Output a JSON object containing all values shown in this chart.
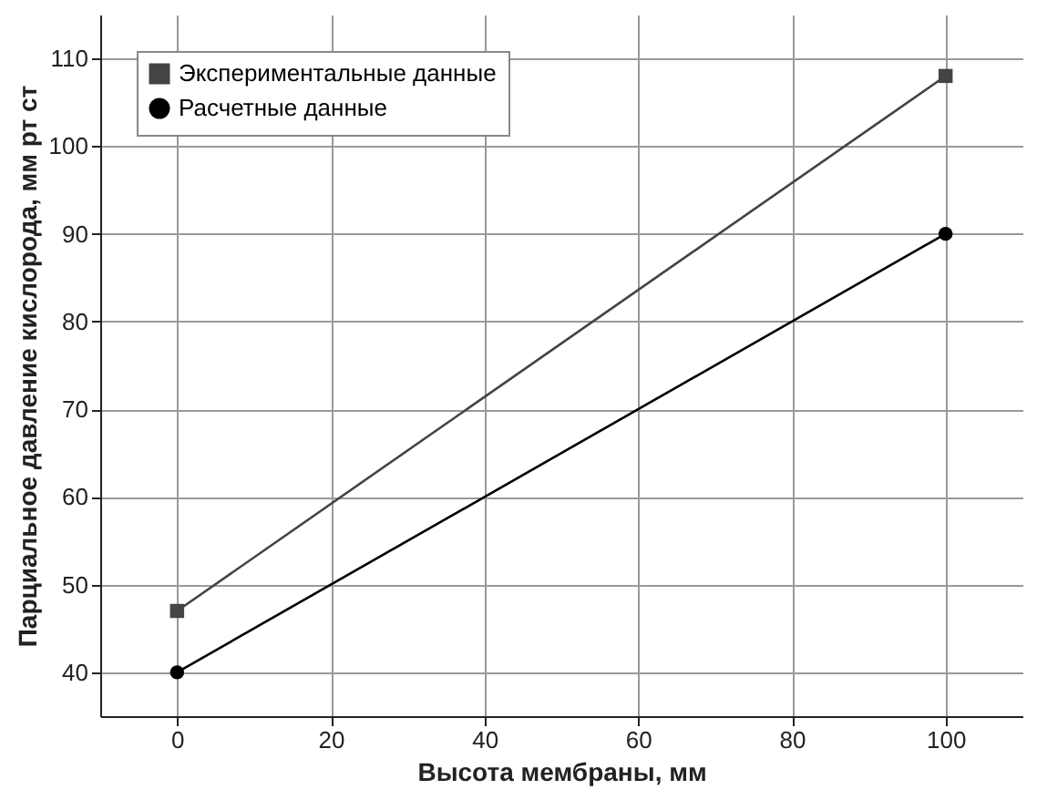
{
  "chart_data": {
    "type": "line",
    "xlabel": "Высота мембраны, мм",
    "ylabel": "Парциальное давление кислорода, мм рт ст",
    "x": [
      0,
      100
    ],
    "series": [
      {
        "name": "Экспериментальные данные",
        "color": "#444444",
        "marker": "square",
        "values": [
          47,
          108
        ]
      },
      {
        "name": "Расчетные данные",
        "color": "#000000",
        "marker": "circle",
        "values": [
          40,
          90
        ]
      }
    ],
    "xlim": [
      -10,
      110
    ],
    "xticks": [
      0,
      20,
      40,
      60,
      80,
      100
    ],
    "ylim": [
      35,
      115
    ],
    "yticks": [
      40,
      50,
      60,
      70,
      80,
      90,
      100,
      110
    ],
    "grid": true,
    "legend": "top left",
    "line_style": "solid"
  }
}
